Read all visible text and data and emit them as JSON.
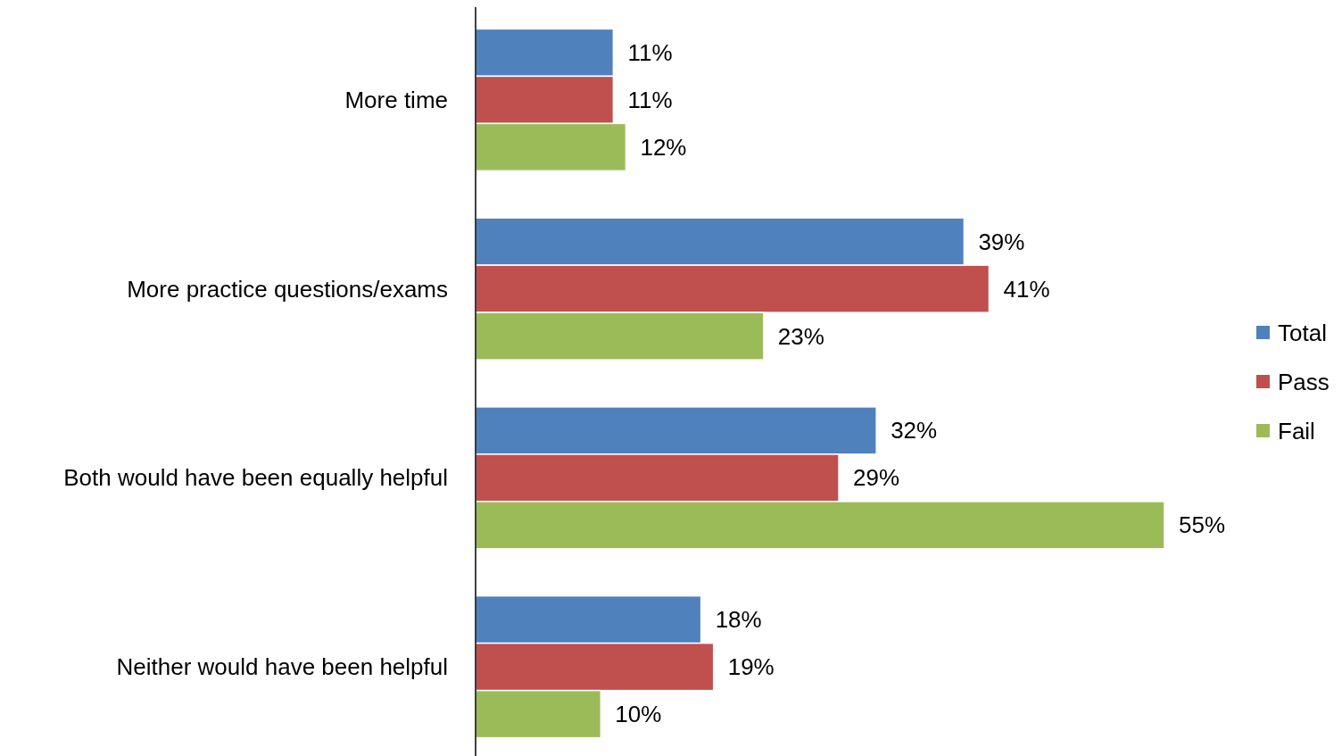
{
  "chart_data": {
    "type": "bar",
    "orientation": "horizontal",
    "categories": [
      "More time",
      "More practice questions/exams",
      "Both would have been equally helpful",
      "Neither would have been helpful"
    ],
    "series": [
      {
        "name": "Total",
        "color": "#4f81bd",
        "values": [
          11,
          39,
          32,
          18
        ],
        "value_labels": [
          "11%",
          "39%",
          "32%",
          "18%"
        ]
      },
      {
        "name": "Pass",
        "color": "#c0504d",
        "values": [
          11,
          41,
          29,
          19
        ],
        "value_labels": [
          "11%",
          "41%",
          "29%",
          "19%"
        ]
      },
      {
        "name": "Fail",
        "color": "#9bbb59",
        "values": [
          12,
          23,
          55,
          10
        ],
        "value_labels": [
          "12%",
          "23%",
          "55%",
          "10%"
        ]
      }
    ],
    "legend": "right"
  }
}
